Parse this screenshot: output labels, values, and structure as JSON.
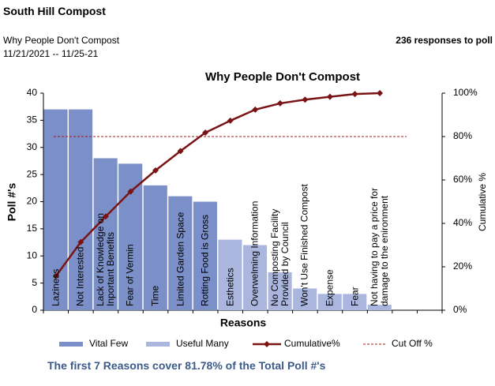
{
  "header": {
    "title": "South Hill Compost",
    "subtitle": "Why People Don't Compost",
    "dates": "11/21/2021 -- 11/25-21",
    "responses": "236 responses to poll"
  },
  "chart_data": {
    "type": "pareto",
    "title": "Why People Don't Compost",
    "x_label": "Reasons",
    "y_label": "Poll #'s",
    "y2_label": "Cumulative %",
    "categories": [
      "Laziness",
      "Not Interested",
      "Lack of Knowledge on Inportant Benefits",
      "Fear of Vermin",
      "Time",
      "Limited Garden Space",
      "Rotting Food is Gross",
      "Esthetics",
      "Overwelming Information",
      "No Composting Facility Provided by Council",
      "Won't Use Finished Compost",
      "Expense",
      "Fear",
      "Not having to pay a price for damage to the enironment"
    ],
    "series": [
      {
        "name": "Vital Few",
        "color": "#7b8fc8",
        "values": [
          37,
          37,
          28,
          27,
          23,
          21,
          20,
          null,
          null,
          null,
          null,
          null,
          null,
          null
        ]
      },
      {
        "name": "Useful Many",
        "color": "#abb6df",
        "values": [
          null,
          null,
          null,
          null,
          null,
          null,
          null,
          13,
          12,
          7,
          4,
          3,
          3,
          1
        ]
      },
      {
        "name": "Cumulative%",
        "color": "#7a1414",
        "axis": "y2",
        "values": [
          15.7,
          31.4,
          43.2,
          54.7,
          64.4,
          73.3,
          81.8,
          87.3,
          92.4,
          95.3,
          97.0,
          98.3,
          99.6,
          100
        ]
      }
    ],
    "cutoff": {
      "name": "Cut Off %",
      "color": "#a01818",
      "value": 80
    },
    "ylim": [
      0,
      40
    ],
    "yticks": [
      0,
      5,
      10,
      15,
      20,
      25,
      30,
      35,
      40
    ],
    "y2lim": [
      0,
      100
    ],
    "y2ticks": [
      {
        "value": 0,
        "label": "0%"
      },
      {
        "value": 20,
        "label": "20%"
      },
      {
        "value": 40,
        "label": "40%"
      },
      {
        "value": 60,
        "label": "60%"
      },
      {
        "value": 80,
        "label": "80%"
      },
      {
        "value": 100,
        "label": "100%"
      }
    ]
  },
  "footer": "The first 7 Reasons cover 81.78% of the Total Poll #'s"
}
